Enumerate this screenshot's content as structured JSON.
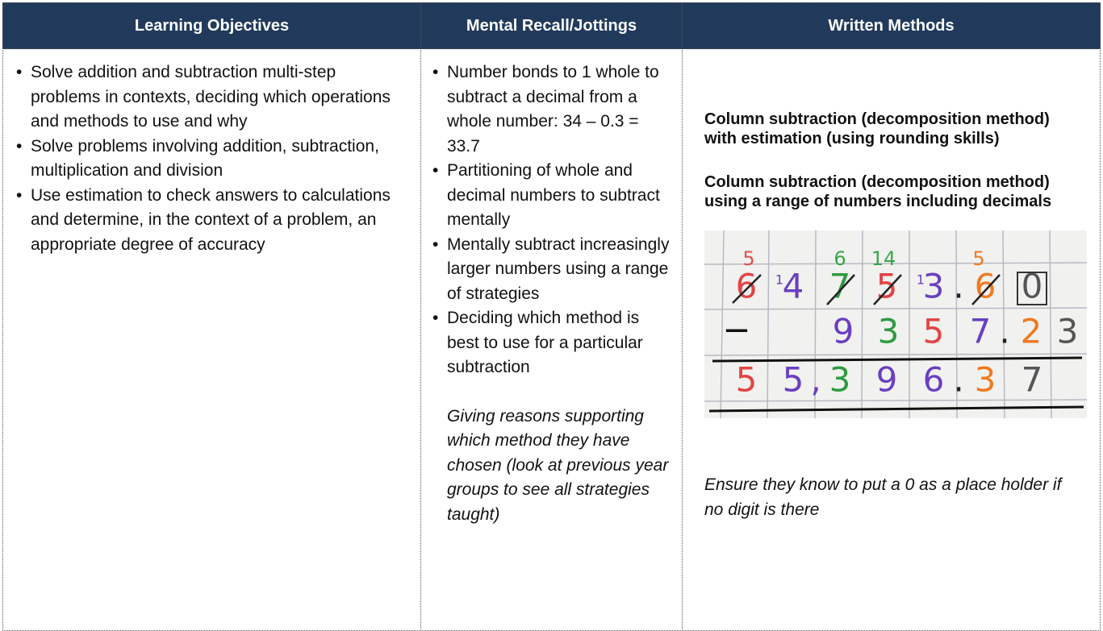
{
  "columns": [
    {
      "header": "Learning Objectives",
      "bullets": [
        "Solve addition and subtraction multi-step problems in contexts, deciding which operations and methods to use and why",
        "Solve problems involving addition, subtraction, multiplication and division",
        "Use estimation to check answers to calculations and determine, in the context of a problem, an appropriate degree of accuracy"
      ]
    },
    {
      "header": "Mental Recall/Jottings",
      "bullets": [
        "Number bonds to 1 whole to subtract a decimal from a whole number: 34 – 0.3 = 33.7",
        "Partitioning of whole and decimal numbers to subtract mentally",
        "Mentally subtract increasingly larger numbers using a range of strategies",
        "Deciding which method is best to use for a particular subtraction"
      ],
      "note": "Giving reasons supporting which method they have chosen (look at previous year groups to see all strategies taught)"
    },
    {
      "header": "Written Methods",
      "headings": [
        "Column subtraction (decomposition method) with estimation (using rounding skills)",
        "Column subtraction (decomposition method) using a range of numbers including decimals"
      ],
      "photo": {
        "carries": [
          "5",
          "6",
          "14",
          "5"
        ],
        "borrows": [
          "1",
          "1"
        ],
        "top": [
          "6",
          "4",
          "7",
          "5",
          "3",
          ".",
          "6",
          "0"
        ],
        "minus": "−",
        "subtract": [
          "9",
          "3",
          "5",
          "7",
          ".",
          "2",
          "3"
        ],
        "answer": [
          "5",
          "5",
          ",",
          "3",
          "9",
          "6",
          ".",
          "3",
          "7"
        ]
      },
      "note": "Ensure they know to put a 0 as a place holder if no digit is there"
    }
  ]
}
